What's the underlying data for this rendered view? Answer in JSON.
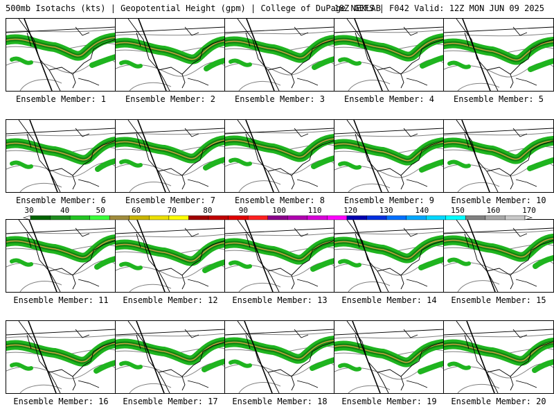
{
  "header": {
    "left": "500mb Isotachs (kts) | Geopotential Height (gpm) | College of DuPage NEXLAB",
    "right": "18Z GEFS | F042 Valid: 12Z MON JUN 09 2025"
  },
  "members": [
    "Ensemble Member: 1",
    "Ensemble Member: 2",
    "Ensemble Member: 3",
    "Ensemble Member: 4",
    "Ensemble Member: 5",
    "Ensemble Member: 6",
    "Ensemble Member: 7",
    "Ensemble Member: 8",
    "Ensemble Member: 9",
    "Ensemble Member: 10",
    "Ensemble Member: 11",
    "Ensemble Member: 12",
    "Ensemble Member: 13",
    "Ensemble Member: 14",
    "Ensemble Member: 15",
    "Ensemble Member: 16",
    "Ensemble Member: 17",
    "Ensemble Member: 18",
    "Ensemble Member: 19",
    "Ensemble Member: 20"
  ],
  "colorbar": {
    "labels": [
      "30",
      "40",
      "50",
      "60",
      "70",
      "80",
      "90",
      "100",
      "110",
      "120",
      "130",
      "140",
      "150",
      "160",
      "170"
    ],
    "colors": [
      "#006400",
      "#1e8c1e",
      "#22c422",
      "#39ff39",
      "#a08c3c",
      "#c8b400",
      "#ece000",
      "#ffff00",
      "#a00000",
      "#c00000",
      "#e00000",
      "#ff2020",
      "#8b008b",
      "#b000b0",
      "#d800d8",
      "#ff00ff",
      "#0000b0",
      "#0030e0",
      "#0070ff",
      "#00a8ff",
      "#00d8ff",
      "#00ffff",
      "#808080",
      "#a8a8a8",
      "#c8c8c8"
    ]
  },
  "legend_colors": {
    "jet_green": "#1fb41f",
    "jet_dark": "#0a6e0a",
    "jet_core": "#c8a040",
    "height_contour": "#808080",
    "coastline": "#000000"
  }
}
